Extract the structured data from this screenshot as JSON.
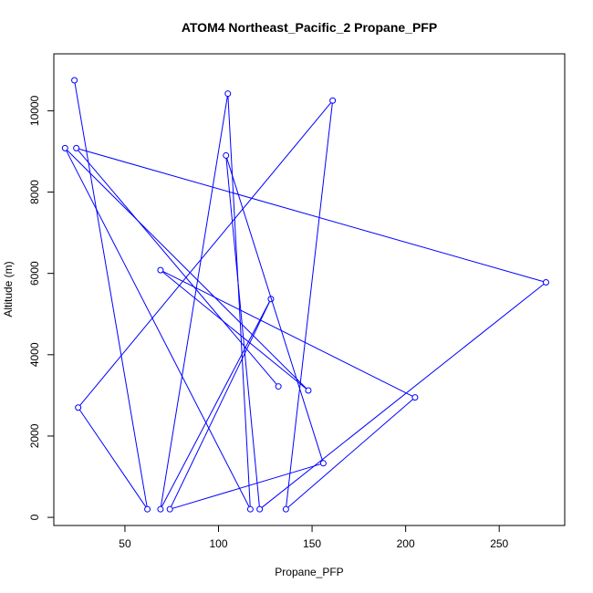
{
  "chart_data": {
    "type": "line",
    "title": "ATOM4 Northeast_Pacific_2 Propane_PFP",
    "xlabel": "Propane_PFP",
    "ylabel": "Altitude (m)",
    "xlim": [
      12,
      285
    ],
    "ylim": [
      -200,
      11400
    ],
    "x_ticks": [
      50,
      100,
      150,
      200,
      250
    ],
    "y_ticks": [
      0,
      2000,
      4000,
      6000,
      8000,
      10000
    ],
    "grid": false,
    "series_color": "#0000ff",
    "markers": "open-circle",
    "points": [
      {
        "x": 23,
        "y": 10750
      },
      {
        "x": 62,
        "y": 200
      },
      {
        "x": 25,
        "y": 2700
      },
      {
        "x": 161,
        "y": 10250
      },
      {
        "x": 136,
        "y": 200
      },
      {
        "x": 205,
        "y": 2950
      },
      {
        "x": 69,
        "y": 6080
      },
      {
        "x": 148,
        "y": 3120
      },
      {
        "x": 18,
        "y": 9080
      },
      {
        "x": 117,
        "y": 200
      },
      {
        "x": 105,
        "y": 10420
      },
      {
        "x": 69,
        "y": 200
      },
      {
        "x": 128,
        "y": 5370
      },
      {
        "x": 74,
        "y": 200
      },
      {
        "x": 156,
        "y": 1330
      },
      {
        "x": 104,
        "y": 8900
      },
      {
        "x": 122,
        "y": 200
      },
      {
        "x": 275,
        "y": 5780
      },
      {
        "x": 24,
        "y": 9080
      },
      {
        "x": 132,
        "y": 3220
      }
    ]
  }
}
